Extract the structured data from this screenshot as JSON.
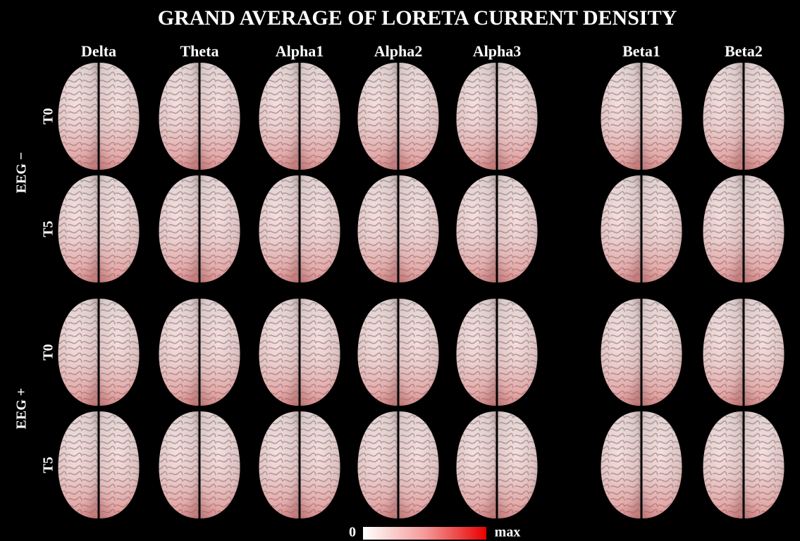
{
  "title": "GRAND AVERAGE OF LORETA CURRENT DENSITY",
  "columns": [
    "Delta",
    "Theta",
    "Alpha1",
    "Alpha2",
    "Alpha3",
    "Beta1",
    "Beta2"
  ],
  "groups": [
    {
      "label": "EEG −",
      "rows": [
        "T0",
        "T5"
      ]
    },
    {
      "label": "EEG +",
      "rows": [
        "T0",
        "T5"
      ]
    }
  ],
  "colorbar": {
    "min_label": "0",
    "max_label": "max"
  }
}
